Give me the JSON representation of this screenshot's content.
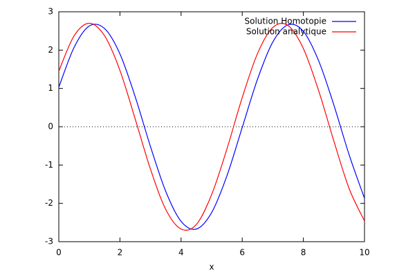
{
  "chart_data": {
    "type": "line",
    "x_label": "x",
    "x": [
      0,
      0.5,
      1,
      1.5,
      2,
      2.5,
      3,
      3.5,
      4,
      4.5,
      5,
      5.5,
      6,
      6.5,
      7,
      7.5,
      8,
      8.5,
      9,
      9.5,
      10
    ],
    "series": [
      {
        "name": "Solution Homotopie",
        "color": "#0000ff",
        "values": [
          1.03,
          2.07,
          2.63,
          2.56,
          1.9,
          0.78,
          -0.52,
          -1.69,
          -2.47,
          -2.67,
          -2.24,
          -1.28,
          -0.02,
          1.24,
          2.21,
          2.66,
          2.49,
          1.72,
          0.56,
          -0.74,
          -1.87
        ]
      },
      {
        "name": "Solution analytique",
        "color": "#ff0000",
        "values": [
          1.45,
          2.37,
          2.7,
          2.37,
          1.47,
          0.2,
          -1.11,
          -2.16,
          -2.67,
          -2.55,
          -1.77,
          -0.58,
          0.76,
          1.91,
          2.59,
          2.64,
          2.04,
          0.94,
          -0.38,
          -1.62,
          -2.46
        ]
      }
    ],
    "xlim": [
      0,
      10
    ],
    "xticks": [
      0,
      2,
      4,
      6,
      8,
      10
    ],
    "ylim": [
      -3,
      3
    ],
    "yticks": [
      -3,
      -2,
      -1,
      0,
      1,
      2,
      3
    ],
    "grid": false,
    "zero_axis": true,
    "legend": "top-right"
  }
}
